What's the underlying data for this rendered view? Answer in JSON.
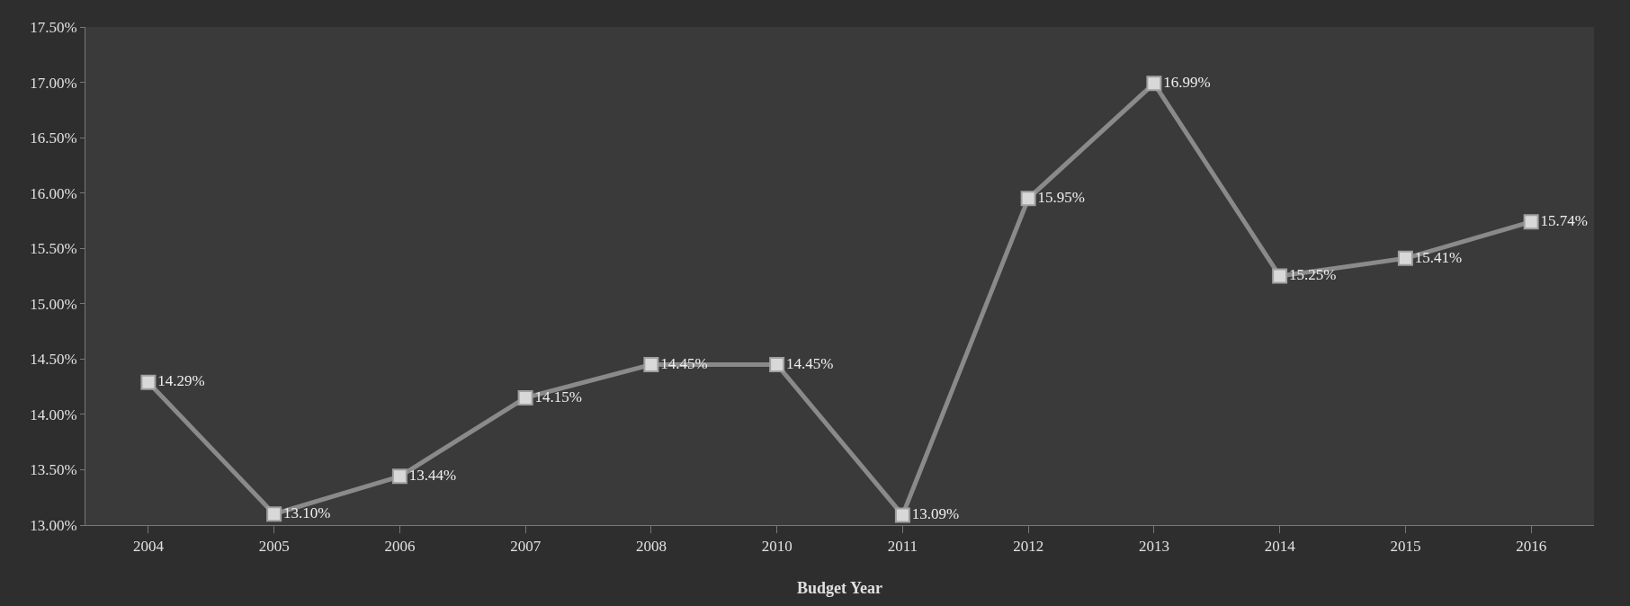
{
  "chart_data": {
    "type": "line",
    "xlabel": "Budget Year",
    "categories": [
      "2004",
      "2005",
      "2006",
      "2007",
      "2008",
      "2010",
      "2011",
      "2012",
      "2013",
      "2014",
      "2015",
      "2016"
    ],
    "series": [
      {
        "color": "#8a8a8a",
        "values": [
          14.29,
          13.1,
          13.44,
          14.15,
          14.45,
          14.45,
          13.09,
          15.95,
          16.99,
          15.25,
          15.41,
          15.74
        ],
        "value_labels": [
          "14.29%",
          "13.10%",
          "13.44%",
          "14.15%",
          "14.45%",
          "14.45%",
          "13.09%",
          "15.95%",
          "16.99%",
          "15.25%",
          "15.41%",
          "15.74%"
        ]
      }
    ],
    "ylim": [
      13,
      17.5
    ],
    "yticks": [
      {
        "value": 13,
        "label": "13.00%"
      },
      {
        "value": 13.5,
        "label": "13.50%"
      },
      {
        "value": 14,
        "label": "14.00%"
      },
      {
        "value": 14.5,
        "label": "14.50%"
      },
      {
        "value": 15,
        "label": "15.00%"
      },
      {
        "value": 15.5,
        "label": "15.50%"
      },
      {
        "value": 16,
        "label": "16.00%"
      },
      {
        "value": 16.5,
        "label": "16.50%"
      },
      {
        "value": 17,
        "label": "17.00%"
      },
      {
        "value": 17.5,
        "label": "17.50%"
      }
    ],
    "marker": "square",
    "line_style": "solid",
    "legend": false,
    "grid": false
  }
}
